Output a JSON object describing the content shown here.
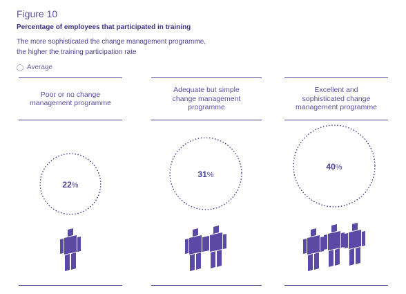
{
  "figure_label": "Figure 10",
  "title": "Percentage of employees that  participated in training",
  "subtitle_line1": "The more sophisticated the change management programme,",
  "subtitle_line2": "the higher the  training participation rate",
  "legend_label": "Average",
  "colors": {
    "accent": "#4a3f95",
    "figure": "#5a4aa6",
    "dotted": "#4a3f95"
  },
  "chart_data": {
    "type": "bubble",
    "title": "Percentage of employees that  participated in training",
    "categories": [
      "Poor or no change management programme",
      "Adequate but simple change management programme",
      "Excellent and sophisticated change management programme"
    ],
    "values": [
      22,
      31,
      40
    ],
    "unit": "%",
    "person_icons": [
      1,
      2,
      3
    ],
    "legend": [
      "Average"
    ]
  }
}
